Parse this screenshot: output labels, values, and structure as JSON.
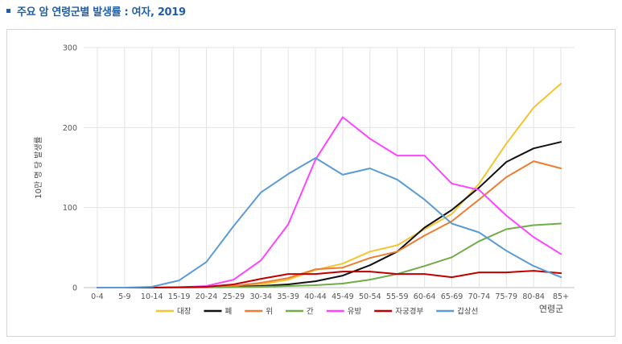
{
  "page": {
    "title": "주요 암 연령군별 발생률 : 여자, 2019"
  },
  "chart_data": {
    "type": "line",
    "title": "주요 암 연령군별 발생률 : 여자, 2019",
    "xlabel": "연령군",
    "ylabel": "10만 명 당 발생률",
    "ylim": [
      0,
      300
    ],
    "yticks": [
      0,
      100,
      200,
      300
    ],
    "grid": true,
    "legend_position": "bottom",
    "categories": [
      "0-4",
      "5-9",
      "10-14",
      "15-19",
      "20-24",
      "25-29",
      "30-34",
      "35-39",
      "40-44",
      "45-49",
      "50-54",
      "55-59",
      "60-64",
      "65-69",
      "70-74",
      "75-79",
      "80-84",
      "85+"
    ],
    "series": [
      {
        "name": "대장",
        "color": "#f5c431",
        "values": [
          0,
          0,
          0,
          0,
          0.5,
          1.5,
          4,
          10,
          22,
          30,
          45,
          53,
          73,
          92,
          130,
          180,
          225,
          255
        ]
      },
      {
        "name": "폐",
        "color": "#111111",
        "values": [
          0,
          0,
          0,
          0,
          0.5,
          1,
          2,
          4,
          8,
          15,
          28,
          45,
          75,
          97,
          125,
          157,
          174,
          182
        ]
      },
      {
        "name": "위",
        "color": "#ed7d31",
        "values": [
          0,
          0,
          0,
          0,
          0.5,
          2,
          6,
          12,
          23,
          25,
          37,
          45,
          65,
          83,
          110,
          138,
          158,
          149
        ]
      },
      {
        "name": "간",
        "color": "#70ad47",
        "values": [
          0,
          0,
          0,
          0,
          0.2,
          0.5,
          1,
          2,
          3,
          5,
          10,
          17,
          27,
          38,
          58,
          73,
          78,
          80
        ]
      },
      {
        "name": "유방",
        "color": "#ff44ff",
        "values": [
          0,
          0,
          0,
          0.5,
          2,
          10,
          34,
          79,
          160,
          213,
          186,
          165,
          165,
          130,
          122,
          90,
          63,
          42
        ]
      },
      {
        "name": "자궁경부",
        "color": "#c00000",
        "values": [
          0,
          0,
          0,
          0.5,
          1,
          4,
          11,
          17,
          17,
          20,
          20,
          17,
          17,
          13,
          19,
          19,
          21,
          18
        ]
      },
      {
        "name": "갑상선",
        "color": "#5b9bd5",
        "values": [
          0,
          0,
          1,
          9,
          32,
          77,
          119,
          142,
          162,
          141,
          149,
          135,
          110,
          80,
          69,
          46,
          27,
          13
        ]
      }
    ]
  }
}
